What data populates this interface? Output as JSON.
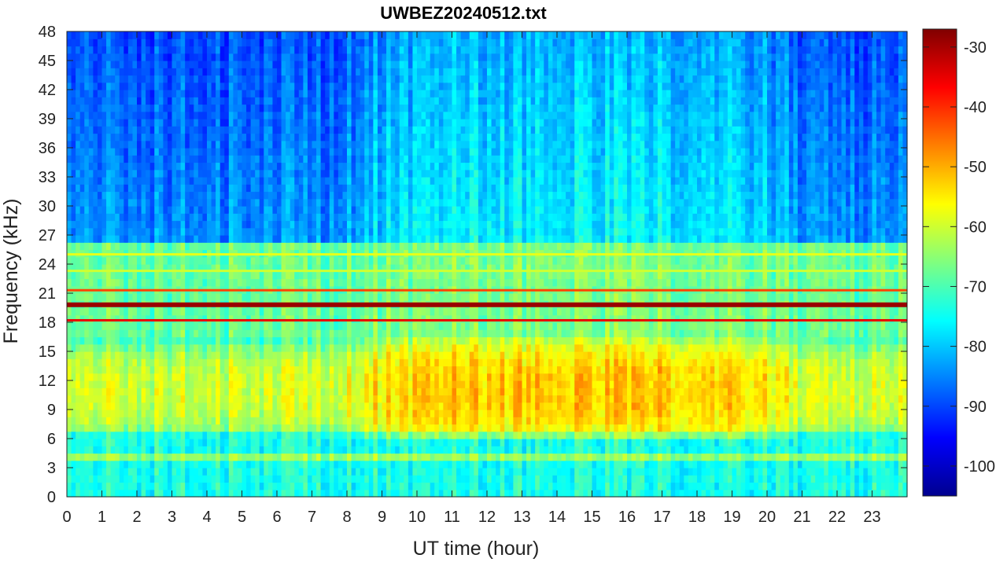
{
  "chart_data": {
    "type": "heatmap",
    "title": "UWBEZ20240512.txt",
    "xlabel": "UT time (hour)",
    "ylabel": "Frequency (kHz)",
    "xlim": [
      0,
      24
    ],
    "ylim": [
      0,
      48
    ],
    "x_ticks": [
      "0",
      "1",
      "2",
      "3",
      "4",
      "5",
      "6",
      "7",
      "8",
      "9",
      "10",
      "11",
      "12",
      "13",
      "14",
      "15",
      "16",
      "17",
      "18",
      "19",
      "20",
      "21",
      "22",
      "23"
    ],
    "y_ticks": [
      "0",
      "3",
      "6",
      "9",
      "12",
      "15",
      "18",
      "21",
      "24",
      "27",
      "30",
      "33",
      "36",
      "39",
      "42",
      "45",
      "48"
    ],
    "colorbar": {
      "range": [
        -105,
        -27
      ],
      "ticks": [
        "-30",
        "-40",
        "-50",
        "-60",
        "-70",
        "-80",
        "-90",
        "-100"
      ],
      "colormap": "jet"
    },
    "spectral_features": {
      "strong_lines_khz": [
        19.8,
        18.2,
        21.3,
        25.0,
        23.3
      ],
      "background_db": {
        "high_freq_night_hours_0_8": -88,
        "high_freq_day_hours_8_20": -76,
        "band_6_16khz_hours_0_8": -60,
        "band_6_16khz_hours_9_20": -52,
        "below_6khz": -74
      },
      "peak_level_db": -27
    }
  }
}
